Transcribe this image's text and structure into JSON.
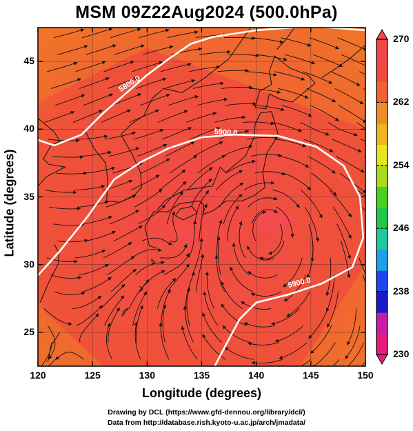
{
  "title": "MSM 09Z22Aug2024 (500.0hPa)",
  "xlabel": "Longitude (degrees)",
  "ylabel": "Latitude  (degrees)",
  "credits": [
    "Drawing by DCL (https://www.gfd-dennou.org/library/dcl/)",
    "Data from http://database.rish.kyoto-u.ac.jp/arch/jmadata/"
  ],
  "x_ticks": [
    "120",
    "125",
    "130",
    "135",
    "140",
    "145",
    "150"
  ],
  "y_ticks": [
    "25",
    "30",
    "35",
    "40",
    "45"
  ],
  "colorbar": {
    "ticks": [
      "270",
      "262",
      "254",
      "246",
      "238",
      "230"
    ],
    "range": [
      230,
      270
    ],
    "colors": [
      "#e81a7e",
      "#c81ca8",
      "#1a1ac8",
      "#1e46f0",
      "#1ea0e6",
      "#1ec8a0",
      "#1ec846",
      "#46d21e",
      "#aadc1e",
      "#e6e61e",
      "#f0b41e",
      "#f08c28",
      "#f06432",
      "#f04a3c",
      "#f04848"
    ]
  },
  "map": {
    "extent": {
      "lon": [
        120,
        150
      ],
      "lat": [
        22.5,
        47.5
      ]
    },
    "grid_lon": [
      120,
      125,
      130,
      135,
      140,
      145,
      150
    ],
    "grid_lat": [
      25,
      30,
      35,
      40,
      45
    ],
    "fill_colors": {
      "warm": "#f04848",
      "mid": "#f05a36",
      "edge": "#f07a28"
    },
    "contour_labels": [
      {
        "text": "5800.0",
        "lon": 128.5,
        "lat": 43.2
      },
      {
        "text": "5900.0",
        "lon": 137.2,
        "lat": 39.6
      },
      {
        "text": "5900.0",
        "lon": 144.0,
        "lat": 28.5
      }
    ],
    "contours": [
      {
        "name": "5800-contour",
        "points": [
          [
            120,
            39.2
          ],
          [
            121.5,
            38.8
          ],
          [
            124,
            39.6
          ],
          [
            126,
            41.2
          ],
          [
            128,
            42.6
          ],
          [
            130,
            44.0
          ],
          [
            132,
            45.2
          ],
          [
            134,
            46.3
          ],
          [
            136,
            46.8
          ],
          [
            140,
            47.3
          ],
          [
            145,
            47.6
          ],
          [
            150,
            47.3
          ]
        ]
      },
      {
        "name": "5900-contour-north",
        "points": [
          [
            120,
            29.2
          ],
          [
            122,
            31.0
          ],
          [
            124.5,
            33.5
          ],
          [
            127,
            36.3
          ],
          [
            129.5,
            37.6
          ],
          [
            132,
            38.6
          ],
          [
            135,
            39.4
          ],
          [
            138,
            39.6
          ],
          [
            142,
            39.5
          ],
          [
            145.5,
            38.7
          ],
          [
            148,
            37.3
          ],
          [
            149.5,
            35.0
          ],
          [
            149.8,
            32.0
          ],
          [
            148.8,
            29.8
          ],
          [
            146,
            28.6
          ],
          [
            143,
            27.8
          ],
          [
            140,
            27.2
          ],
          [
            138.5,
            26.0
          ],
          [
            137.3,
            24.2
          ],
          [
            136.2,
            22.5
          ]
        ]
      }
    ]
  }
}
